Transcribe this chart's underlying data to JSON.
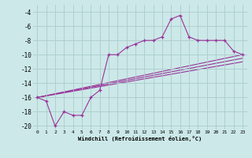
{
  "xlabel": "Windchill (Refroidissement éolien,°C)",
  "bg_color": "#cce8e8",
  "grid_color": "#aacccc",
  "line_color": "#993399",
  "xlim": [
    -0.5,
    23.5
  ],
  "ylim": [
    -20.5,
    -3.0
  ],
  "yticks": [
    -20,
    -18,
    -16,
    -14,
    -12,
    -10,
    -8,
    -6,
    -4
  ],
  "xticks": [
    0,
    1,
    2,
    3,
    4,
    5,
    6,
    7,
    8,
    9,
    10,
    11,
    12,
    13,
    14,
    15,
    16,
    17,
    18,
    19,
    20,
    21,
    22,
    23
  ],
  "series1_x": [
    0,
    1,
    2,
    3,
    4,
    5,
    6,
    7,
    8,
    9,
    10,
    11,
    12,
    13,
    14,
    15,
    16,
    17,
    18,
    19,
    20,
    21,
    22,
    23
  ],
  "series1_y": [
    -16,
    -16.5,
    -20,
    -18,
    -18.5,
    -18.5,
    -16,
    -15,
    -10,
    -10,
    -9,
    -8.5,
    -8,
    -8,
    -7.5,
    -5,
    -4.5,
    -7.5,
    -8,
    -8,
    -8,
    -8,
    -9.5,
    -10
  ],
  "series2_x": [
    0,
    23
  ],
  "series2_y": [
    -16,
    -10.0
  ],
  "series3_x": [
    0,
    23
  ],
  "series3_y": [
    -16,
    -10.5
  ],
  "series4_x": [
    0,
    23
  ],
  "series4_y": [
    -16,
    -11.0
  ]
}
